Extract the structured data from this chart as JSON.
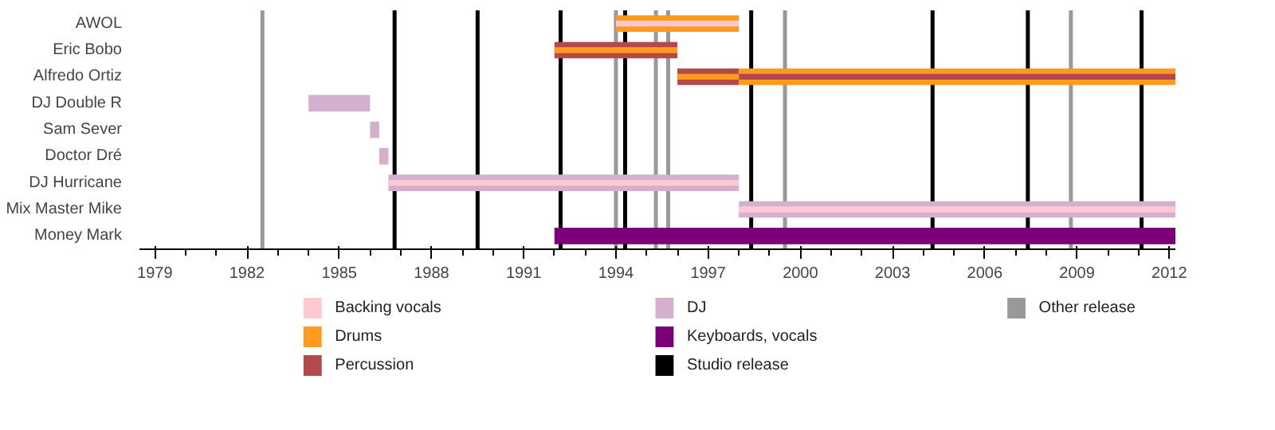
{
  "chart_data": {
    "type": "bar",
    "orientation": "horizontal",
    "categories": [
      "AWOL",
      "Eric Bobo",
      "Alfredo Ortiz",
      "DJ Double R",
      "Sam Sever",
      "Doctor Dré",
      "DJ Hurricane",
      "Mix Master Mike",
      "Money Mark"
    ],
    "series": [
      {
        "name": "Backing vocals",
        "color": "#ffc8d2",
        "base": [
          1994.0,
          null,
          null,
          null,
          null,
          null,
          1986.6,
          1998.0,
          null
        ],
        "values": [
          4.0,
          null,
          null,
          null,
          null,
          null,
          11.4,
          14.2,
          null
        ]
      },
      {
        "name": "Drums",
        "color": "#ff9a1f",
        "base": [
          null,
          1992.0,
          1996.0,
          null,
          null,
          null,
          null,
          null,
          null
        ],
        "values": [
          null,
          4.0,
          2.0,
          null,
          null,
          null,
          null,
          null,
          null
        ]
      },
      {
        "name": "Percussion",
        "color": "#b5484a",
        "base": [
          null,
          null,
          1998.0,
          null,
          null,
          null,
          null,
          null,
          null
        ],
        "values": [
          null,
          null,
          14.2,
          null,
          null,
          null,
          null,
          null,
          null
        ]
      },
      {
        "color": "#ff9a1f",
        "base": [
          1994.0,
          null,
          1998.0,
          null,
          null,
          null,
          null,
          null,
          null
        ],
        "values": [
          4.0,
          null,
          14.2,
          null,
          null,
          null,
          null,
          null,
          null
        ]
      },
      {
        "color": "#b5484a",
        "base": [
          null,
          1992.0,
          1996.0,
          null,
          null,
          null,
          null,
          null,
          null
        ],
        "values": [
          null,
          4.0,
          2.0,
          null,
          null,
          null,
          null,
          null,
          null
        ]
      },
      {
        "name": "DJ",
        "color": "#d4b0cf",
        "base": [
          null,
          null,
          null,
          1984.0,
          1986.0,
          1986.3,
          1986.6,
          1998.0,
          null
        ],
        "values": [
          null,
          null,
          null,
          2.0,
          0.3,
          0.3,
          11.4,
          14.2,
          null
        ]
      },
      {
        "name": "Keyboards, vocals",
        "color": "#7b0078",
        "base": [
          null,
          null,
          null,
          null,
          null,
          null,
          null,
          null,
          1992.0
        ],
        "values": [
          null,
          null,
          null,
          null,
          null,
          null,
          null,
          null,
          20.2
        ]
      }
    ],
    "ref_lines": [
      {
        "axis": "x",
        "value": 1986.8,
        "label": "Studio release",
        "color": "#000000"
      },
      {
        "axis": "x",
        "value": 1989.5,
        "color": "#000000"
      },
      {
        "axis": "x",
        "value": 1992.2,
        "color": "#000000"
      },
      {
        "axis": "x",
        "value": 1994.3,
        "color": "#000000"
      },
      {
        "axis": "x",
        "value": 1998.4,
        "color": "#000000"
      },
      {
        "axis": "x",
        "value": 2004.3,
        "color": "#000000"
      },
      {
        "axis": "x",
        "value": 2007.4,
        "color": "#000000"
      },
      {
        "axis": "x",
        "value": 2011.1,
        "color": "#000000"
      },
      {
        "axis": "x",
        "value": 1982.5,
        "label": "Other release",
        "color": "#999999"
      },
      {
        "axis": "x",
        "value": 1994.0,
        "color": "#999999"
      },
      {
        "axis": "x",
        "value": 1995.3,
        "color": "#999999"
      },
      {
        "axis": "x",
        "value": 1995.7,
        "color": "#999999"
      },
      {
        "axis": "x",
        "value": 1999.5,
        "color": "#999999"
      },
      {
        "axis": "x",
        "value": 2008.8,
        "color": "#999999"
      }
    ],
    "xlim": [
      1978.5,
      2012.2
    ],
    "xticks": [
      1979,
      1982,
      1985,
      1988,
      1991,
      1994,
      1997,
      2000,
      2003,
      2006,
      2009,
      2012
    ],
    "grid": false,
    "legend": "bottom"
  }
}
